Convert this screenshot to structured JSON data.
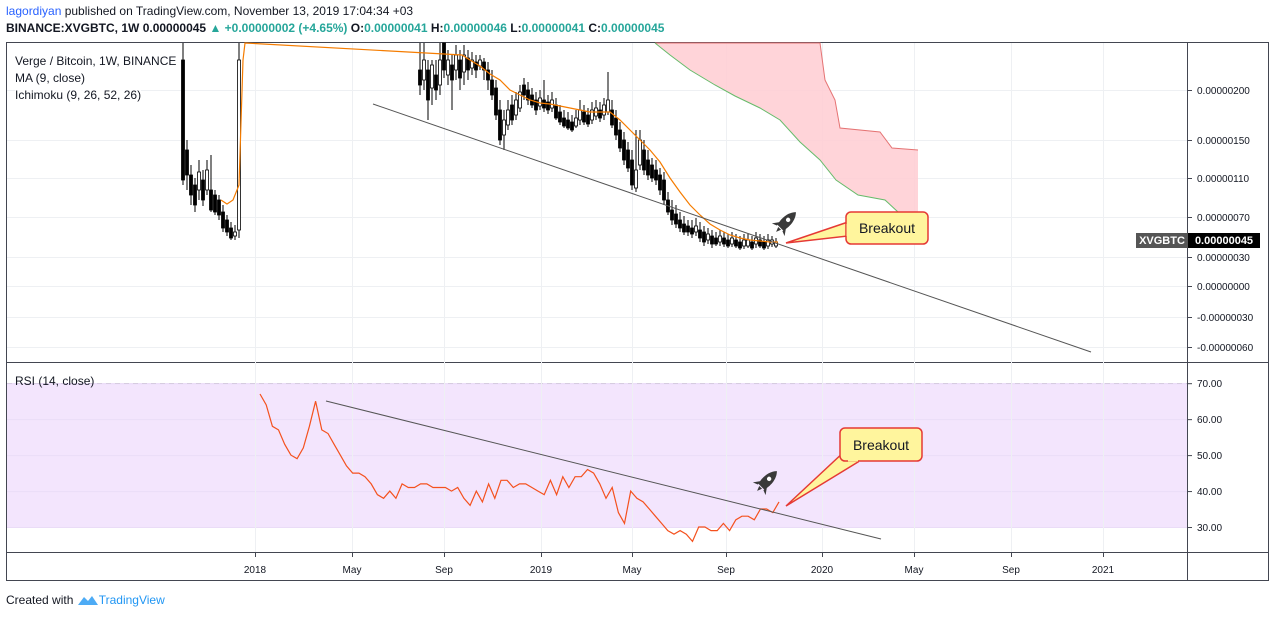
{
  "header": {
    "author": "lagordiyan",
    "published": " published on TradingView.com, November 13, 2019 17:04:34 +03",
    "symbol": "BINANCE:XVGBTC, 1W",
    "last": "0.00000045",
    "change": "▲ +0.00000002 (+4.65%)",
    "o_label": "O:",
    "o": "0.00000041",
    "h_label": "H:",
    "h": "0.00000046",
    "l_label": "L:",
    "l": "0.00000041",
    "c_label": "C:",
    "c": "0.00000045"
  },
  "legend": {
    "title": "Verge / Bitcoin, 1W, BINANCE",
    "ma": "MA (9, close)",
    "ichimoku": "Ichimoku (9, 26, 52, 26)",
    "rsi": "RSI (14, close)"
  },
  "price_tag": {
    "symbol": "XVGBTC",
    "value": "0.00000045"
  },
  "annotations": {
    "breakout_price": "Breakout",
    "breakout_rsi": "Breakout"
  },
  "footer": {
    "created_with": "Created with",
    "brand": "TradingView"
  },
  "colors": {
    "bull": "#ffffff",
    "bear": "#000000",
    "ma": "#f57c00",
    "cloud": "#ffcdd2",
    "cloud_top": "#ef9a9a",
    "cloud_bottom": "#81c784",
    "rsi": "#f4511e",
    "rsi_band": "#f3e5fd",
    "callout": "#fff59d",
    "callout_border": "#e53935"
  },
  "chart_data": [
    {
      "type": "candlestick",
      "title": "Verge / Bitcoin, 1W, BINANCE",
      "y_ticks": [
        "0.00000200",
        "0.00000150",
        "0.00000110",
        "0.00000070",
        "0.00000030",
        "0.00000000",
        "-0.00000030",
        "-0.00000060"
      ],
      "x_ticks": [
        "2018",
        "May",
        "Sep",
        "2019",
        "May",
        "Sep",
        "2020",
        "May",
        "Sep",
        "2021"
      ],
      "series": [
        {
          "name": "MA (9, close)"
        },
        {
          "name": "Ichimoku (9, 26, 52, 26)"
        }
      ],
      "last_value": "0.00000045",
      "annotation": "Breakout"
    },
    {
      "type": "line",
      "title": "RSI (14, close)",
      "y_ticks": [
        "70.00",
        "60.00",
        "50.00",
        "40.00",
        "30.00"
      ],
      "ylim": [
        25,
        72
      ],
      "bands": [
        30,
        70
      ],
      "values": [
        67,
        64,
        58,
        57,
        53,
        50,
        49,
        52,
        58,
        65,
        57,
        56,
        53,
        50,
        47,
        45,
        45,
        44,
        42,
        39,
        38,
        40,
        38,
        42,
        41,
        41,
        42,
        42,
        41,
        41,
        41,
        40,
        41,
        38,
        36,
        40,
        37,
        42,
        38,
        43,
        43,
        41,
        42,
        42,
        41,
        40,
        39,
        43,
        39,
        44,
        41,
        44,
        44,
        46,
        45,
        42,
        38,
        41,
        34,
        31,
        40,
        38,
        37,
        35,
        33,
        31,
        29,
        28,
        29,
        28,
        26,
        30,
        30,
        29,
        29,
        31,
        29,
        32,
        33,
        33,
        32,
        35,
        35,
        34,
        37
      ],
      "annotation": "Breakout"
    }
  ]
}
